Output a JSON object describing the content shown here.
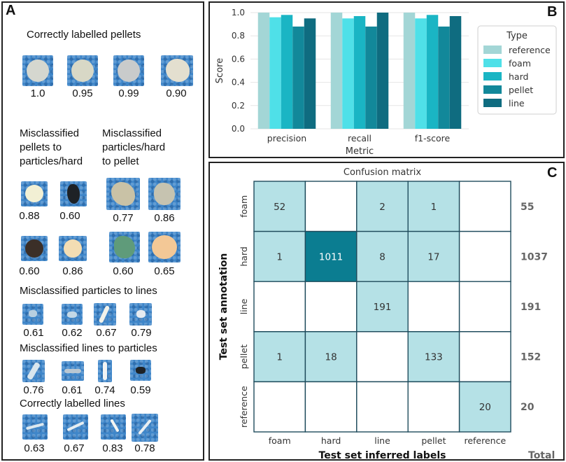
{
  "panel_a": {
    "label": "A",
    "sections": {
      "correct_pellets": "Correctly labelled pellets",
      "misc_pellets_line1": "Misclassified",
      "misc_pellets_line2": "pellets to",
      "misc_pellets_line3": "particles/hard",
      "misc_particles_line1": "Misclassified",
      "misc_particles_line2": "particles/hard",
      "misc_particles_line3": "to pellet",
      "misc_particles_to_lines": "Misclassified particles to lines",
      "misc_lines_to_particles": "Misclassified lines to particles",
      "correct_lines": "Correctly labelled lines"
    },
    "scores": {
      "correct_pellets": [
        "1.0",
        "0.95",
        "0.99",
        "0.90"
      ],
      "misc_pellets_row1": [
        "0.88",
        "0.60"
      ],
      "misc_particles_row1": [
        "0.77",
        "0.86"
      ],
      "misc_pellets_row2": [
        "0.60",
        "0.86"
      ],
      "misc_particles_row2": [
        "0.60",
        "0.65"
      ],
      "misc_particles_to_lines": [
        "0.61",
        "0.62",
        "0.67",
        "0.79"
      ],
      "misc_lines_to_particles": [
        "0.76",
        "0.61",
        "0.74",
        "0.59"
      ],
      "correct_lines": [
        "0.63",
        "0.67",
        "0.83",
        "0.78"
      ]
    }
  },
  "panel_b": {
    "label": "B"
  },
  "panel_c": {
    "label": "C"
  },
  "chart_data": [
    {
      "type": "bar",
      "panel": "B",
      "categories": [
        "precision",
        "recall",
        "f1-score"
      ],
      "series": [
        {
          "name": "reference",
          "color": "#a3d6d6",
          "values": [
            1.0,
            1.0,
            1.0
          ]
        },
        {
          "name": "foam",
          "color": "#4fe0e8",
          "values": [
            0.96,
            0.95,
            0.95
          ]
        },
        {
          "name": "hard",
          "color": "#1ab5c4",
          "values": [
            0.98,
            0.97,
            0.98
          ]
        },
        {
          "name": "pellet",
          "color": "#12889a",
          "values": [
            0.88,
            0.88,
            0.88
          ]
        },
        {
          "name": "line",
          "color": "#0f6c80",
          "values": [
            0.95,
            1.0,
            0.97
          ]
        }
      ],
      "xlabel": "Metric",
      "ylabel": "Score",
      "ylim": [
        0,
        1.0
      ],
      "yticks": [
        "0.0",
        "0.2",
        "0.4",
        "0.6",
        "0.8",
        "1.0"
      ],
      "legend_title": "Type",
      "legend_position": "right"
    },
    {
      "type": "heatmap",
      "panel": "C",
      "title": "Confusion matrix",
      "xlabel": "Test set inferred labels",
      "ylabel": "Test set annotation",
      "x_categories": [
        "foam",
        "hard",
        "line",
        "pellet",
        "reference"
      ],
      "y_categories": [
        "foam",
        "hard",
        "line",
        "pellet",
        "reference"
      ],
      "matrix": [
        [
          52,
          null,
          2,
          1,
          null
        ],
        [
          1,
          1011,
          8,
          17,
          null
        ],
        [
          null,
          null,
          191,
          null,
          null
        ],
        [
          1,
          18,
          null,
          133,
          null
        ],
        [
          null,
          null,
          null,
          null,
          20
        ]
      ],
      "totals": [
        "55",
        "1037",
        "191",
        "152",
        "20"
      ],
      "totals_label": "Total",
      "colors": {
        "light": "#b5e1e6",
        "dark": "#0b7d91",
        "empty": "#ffffff",
        "grid": "#1f4b5c"
      }
    }
  ]
}
